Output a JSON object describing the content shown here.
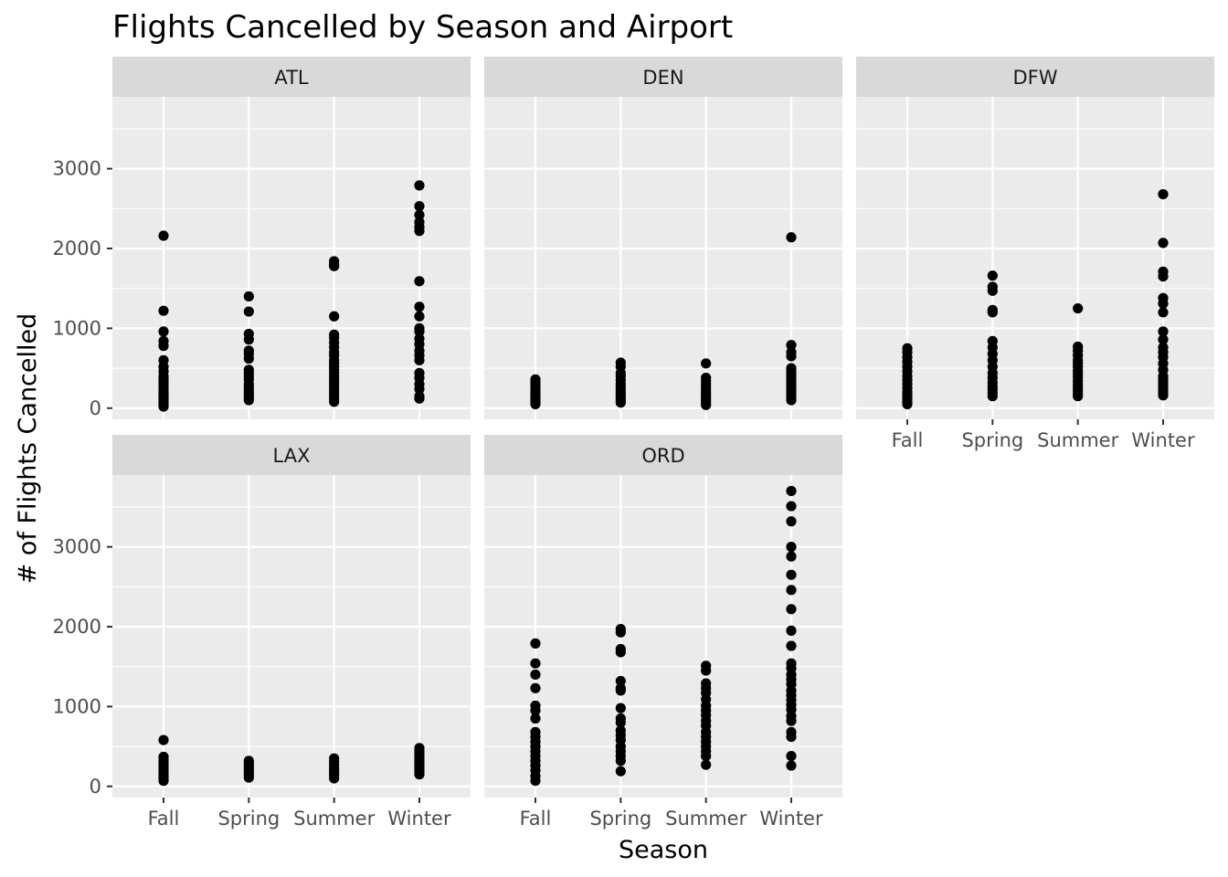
{
  "chart_data": {
    "type": "scatter",
    "title": "Flights Cancelled by Season and Airport",
    "xlabel": "Season",
    "ylabel": "# of Flights Cancelled",
    "categories": [
      "Fall",
      "Spring",
      "Summer",
      "Winter"
    ],
    "yticks": [
      0,
      1000,
      2000,
      3000
    ],
    "ylim": [
      -140,
      3900
    ],
    "grid": true,
    "facet_by": "airport",
    "colors": {
      "point": "#000000",
      "panel": "#ebebeb",
      "strip": "#d9d9d9",
      "grid": "#ffffff"
    },
    "facets": [
      {
        "name": "ATL",
        "points": {
          "Fall": [
            2160,
            1220,
            960,
            840,
            780,
            600,
            520,
            460,
            400,
            360,
            320,
            280,
            240,
            200,
            170,
            140,
            110,
            80,
            50,
            20
          ],
          "Spring": [
            1400,
            1210,
            930,
            860,
            720,
            680,
            620,
            480,
            440,
            400,
            360,
            300,
            260,
            220,
            190,
            160,
            130,
            100
          ],
          "Summer": [
            1840,
            1800,
            1780,
            1150,
            920,
            880,
            820,
            760,
            700,
            660,
            600,
            560,
            520,
            480,
            440,
            400,
            360,
            320,
            280,
            240,
            200,
            160,
            120,
            80
          ],
          "Winter": [
            2790,
            2530,
            2420,
            2330,
            2270,
            2220,
            1590,
            1270,
            1150,
            1000,
            960,
            870,
            800,
            720,
            660,
            600,
            440,
            380,
            300,
            240,
            150,
            120
          ]
        }
      },
      {
        "name": "DEN",
        "points": {
          "Fall": [
            360,
            320,
            280,
            240,
            200,
            170,
            140,
            110,
            80,
            50
          ],
          "Spring": [
            570,
            520,
            440,
            400,
            350,
            300,
            260,
            220,
            190,
            160,
            130,
            100,
            70
          ],
          "Summer": [
            560,
            380,
            340,
            300,
            260,
            220,
            190,
            160,
            130,
            100,
            70,
            40
          ],
          "Winter": [
            2140,
            790,
            700,
            650,
            500,
            460,
            420,
            380,
            340,
            300,
            260,
            220,
            180,
            140,
            100
          ]
        }
      },
      {
        "name": "DFW",
        "points": {
          "Fall": [
            750,
            700,
            640,
            580,
            520,
            460,
            400,
            350,
            300,
            250,
            200,
            160,
            120,
            80,
            50
          ],
          "Spring": [
            1660,
            1520,
            1470,
            1230,
            1200,
            840,
            760,
            680,
            600,
            520,
            440,
            380,
            320,
            270,
            230,
            190,
            150
          ],
          "Summer": [
            1250,
            770,
            720,
            660,
            600,
            560,
            520,
            470,
            430,
            390,
            340,
            300,
            260,
            220,
            180,
            150
          ],
          "Winter": [
            2680,
            2070,
            1710,
            1650,
            1380,
            1310,
            1200,
            960,
            860,
            760,
            700,
            640,
            560,
            480,
            400,
            360,
            320,
            280,
            240,
            200,
            160
          ]
        }
      },
      {
        "name": "LAX",
        "points": {
          "Fall": [
            580,
            370,
            330,
            290,
            250,
            210,
            170,
            130,
            100,
            70
          ],
          "Spring": [
            320,
            290,
            260,
            230,
            200,
            170,
            140,
            110
          ],
          "Summer": [
            350,
            310,
            270,
            230,
            200,
            170,
            140,
            100
          ],
          "Winter": [
            480,
            440,
            400,
            360,
            330,
            300,
            270,
            240,
            210,
            180,
            150
          ]
        }
      },
      {
        "name": "ORD",
        "points": {
          "Fall": [
            1790,
            1540,
            1400,
            1230,
            1010,
            950,
            850,
            680,
            620,
            560,
            500,
            440,
            380,
            320,
            260,
            200,
            130,
            70
          ],
          "Spring": [
            1970,
            1930,
            1720,
            1680,
            1320,
            1230,
            1200,
            980,
            850,
            800,
            700,
            640,
            580,
            500,
            440,
            380,
            320,
            190
          ],
          "Summer": [
            1510,
            1450,
            1290,
            1230,
            1170,
            1090,
            1010,
            950,
            890,
            820,
            760,
            680,
            620,
            560,
            500,
            440,
            380,
            270
          ],
          "Winter": [
            3700,
            3510,
            3320,
            3000,
            2880,
            2650,
            2460,
            2220,
            1950,
            1760,
            1540,
            1480,
            1400,
            1340,
            1280,
            1200,
            1140,
            1080,
            1020,
            960,
            880,
            820,
            680,
            620,
            380,
            260
          ]
        }
      }
    ]
  }
}
